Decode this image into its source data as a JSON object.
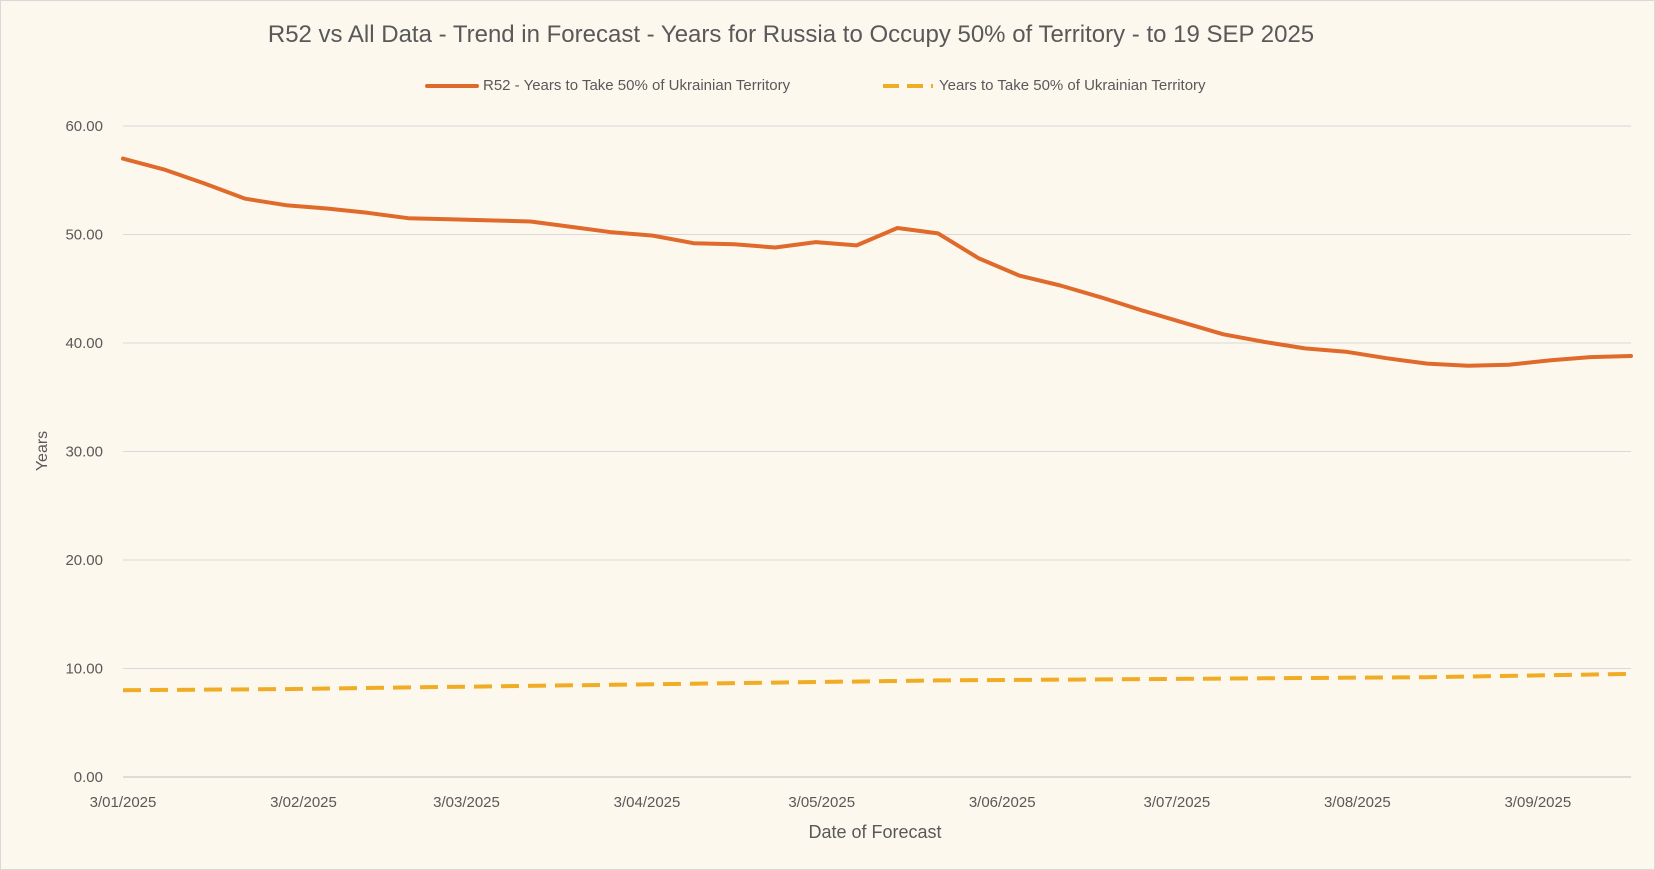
{
  "chart_data": {
    "type": "line",
    "title": "R52 vs All Data  - Trend in Forecast - Years for Russia to Occupy 50% of Territory - to 19 SEP 2025",
    "xlabel": "Date of Forecast",
    "ylabel": "Years",
    "ylim": [
      0,
      60
    ],
    "yticks": [
      "0.00",
      "10.00",
      "20.00",
      "30.00",
      "40.00",
      "50.00",
      "60.00"
    ],
    "xlim": [
      "2025-01-03",
      "2025-09-19"
    ],
    "xticks": [
      {
        "date": "2025-01-03",
        "label": "3/01/2025"
      },
      {
        "date": "2025-02-03",
        "label": "3/02/2025"
      },
      {
        "date": "2025-03-03",
        "label": "3/03/2025"
      },
      {
        "date": "2025-04-03",
        "label": "3/04/2025"
      },
      {
        "date": "2025-05-03",
        "label": "3/05/2025"
      },
      {
        "date": "2025-06-03",
        "label": "3/06/2025"
      },
      {
        "date": "2025-07-03",
        "label": "3/07/2025"
      },
      {
        "date": "2025-08-03",
        "label": "3/08/2025"
      },
      {
        "date": "2025-09-03",
        "label": "3/09/2025"
      }
    ],
    "grid": true,
    "legend_position": "top",
    "series": [
      {
        "name": "R52 - Years to Take  50% of Ukrainian Territory",
        "color": "#e06a2b",
        "dashed": false,
        "points": [
          [
            "2025-01-03",
            57.0
          ],
          [
            "2025-01-10",
            56.0
          ],
          [
            "2025-01-17",
            54.7
          ],
          [
            "2025-01-24",
            53.3
          ],
          [
            "2025-01-31",
            52.7
          ],
          [
            "2025-02-07",
            52.4
          ],
          [
            "2025-02-14",
            52.0
          ],
          [
            "2025-02-21",
            51.5
          ],
          [
            "2025-02-28",
            51.4
          ],
          [
            "2025-03-07",
            51.3
          ],
          [
            "2025-03-14",
            51.2
          ],
          [
            "2025-03-21",
            50.7
          ],
          [
            "2025-03-28",
            50.2
          ],
          [
            "2025-04-04",
            49.9
          ],
          [
            "2025-04-11",
            49.2
          ],
          [
            "2025-04-18",
            49.1
          ],
          [
            "2025-04-25",
            48.8
          ],
          [
            "2025-05-02",
            49.3
          ],
          [
            "2025-05-09",
            49.0
          ],
          [
            "2025-05-16",
            50.6
          ],
          [
            "2025-05-23",
            50.1
          ],
          [
            "2025-05-30",
            47.8
          ],
          [
            "2025-06-06",
            46.2
          ],
          [
            "2025-06-13",
            45.3
          ],
          [
            "2025-06-20",
            44.2
          ],
          [
            "2025-06-27",
            43.0
          ],
          [
            "2025-07-04",
            41.9
          ],
          [
            "2025-07-11",
            40.8
          ],
          [
            "2025-07-18",
            40.1
          ],
          [
            "2025-07-25",
            39.5
          ],
          [
            "2025-08-01",
            39.2
          ],
          [
            "2025-08-08",
            38.6
          ],
          [
            "2025-08-15",
            38.1
          ],
          [
            "2025-08-22",
            37.9
          ],
          [
            "2025-08-29",
            38.0
          ],
          [
            "2025-09-05",
            38.4
          ],
          [
            "2025-09-12",
            38.7
          ],
          [
            "2025-09-19",
            38.8
          ]
        ]
      },
      {
        "name": "Years to Take  50% of Ukrainian Territory",
        "color": "#f0ac24",
        "dashed": true,
        "points": [
          [
            "2025-01-03",
            8.0
          ],
          [
            "2025-01-31",
            8.1
          ],
          [
            "2025-02-28",
            8.3
          ],
          [
            "2025-03-28",
            8.5
          ],
          [
            "2025-04-25",
            8.7
          ],
          [
            "2025-05-23",
            8.9
          ],
          [
            "2025-06-20",
            9.0
          ],
          [
            "2025-07-18",
            9.1
          ],
          [
            "2025-08-15",
            9.2
          ],
          [
            "2025-09-19",
            9.5
          ]
        ]
      }
    ]
  }
}
